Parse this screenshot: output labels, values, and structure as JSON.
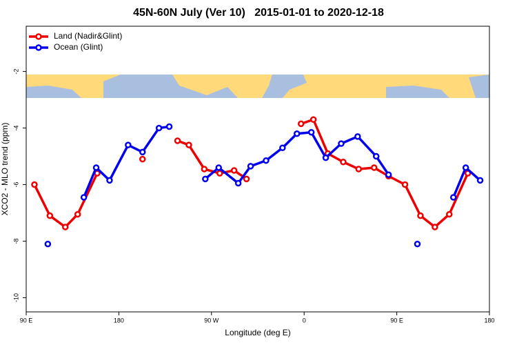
{
  "chart_data": {
    "type": "line",
    "title": "45N-60N July (Ver 10)   2015-01-01 to 2020-12-18",
    "x_label": "Longitude (deg E)",
    "y_label": "XCO2 - MLO trend (ppm)",
    "xlim": [
      90,
      540
    ],
    "ylim": [
      -10.5,
      -0.4
    ],
    "xticks": [
      {
        "value": 90,
        "label": "90 E"
      },
      {
        "value": 180,
        "label": "180"
      },
      {
        "value": 270,
        "label": "90 W"
      },
      {
        "value": 360,
        "label": "0"
      },
      {
        "value": 450,
        "label": "90 E"
      },
      {
        "value": 540,
        "label": "180"
      }
    ],
    "yticks": [
      -10,
      -8,
      -6,
      -4,
      -2
    ],
    "legend": "top-left",
    "series": [
      {
        "name": "Land (Nadir&Glint)",
        "color": "#ee0000",
        "x": [
          98,
          113,
          128,
          140,
          159,
          null,
          203,
          null,
          237,
          248,
          263,
          278,
          292,
          304,
          null,
          357,
          369,
          383,
          398,
          413,
          428,
          442,
          458,
          473,
          487,
          501,
          519
        ],
        "values": [
          -6.0,
          -7.1,
          -7.5,
          -7.05,
          -5.6,
          null,
          -5.1,
          null,
          -4.45,
          -4.6,
          -5.45,
          -5.6,
          -5.5,
          -5.8,
          null,
          -3.85,
          -3.7,
          -4.9,
          -5.2,
          -5.45,
          -5.4,
          -5.7,
          -6.0,
          -7.1,
          -7.5,
          -7.05,
          -5.6
        ]
      },
      {
        "name": "Ocean (Glint)",
        "color": "#0000ee",
        "x": [
          111,
          null,
          146,
          158,
          171,
          189,
          203,
          219,
          229,
          null,
          264,
          277,
          296,
          308,
          323,
          339,
          353,
          367,
          381,
          396,
          412,
          430,
          442,
          null,
          470,
          null,
          505,
          517,
          531
        ],
        "values": [
          -8.1,
          null,
          -6.45,
          -5.4,
          -5.85,
          -4.6,
          -4.85,
          -4.0,
          -3.95,
          null,
          -5.8,
          -5.4,
          -5.95,
          -5.35,
          -5.15,
          -4.7,
          -4.2,
          -4.15,
          -5.05,
          -4.55,
          -4.3,
          -5.0,
          -5.65,
          null,
          -8.1,
          null,
          -6.45,
          -5.4,
          -5.85
        ]
      }
    ]
  }
}
